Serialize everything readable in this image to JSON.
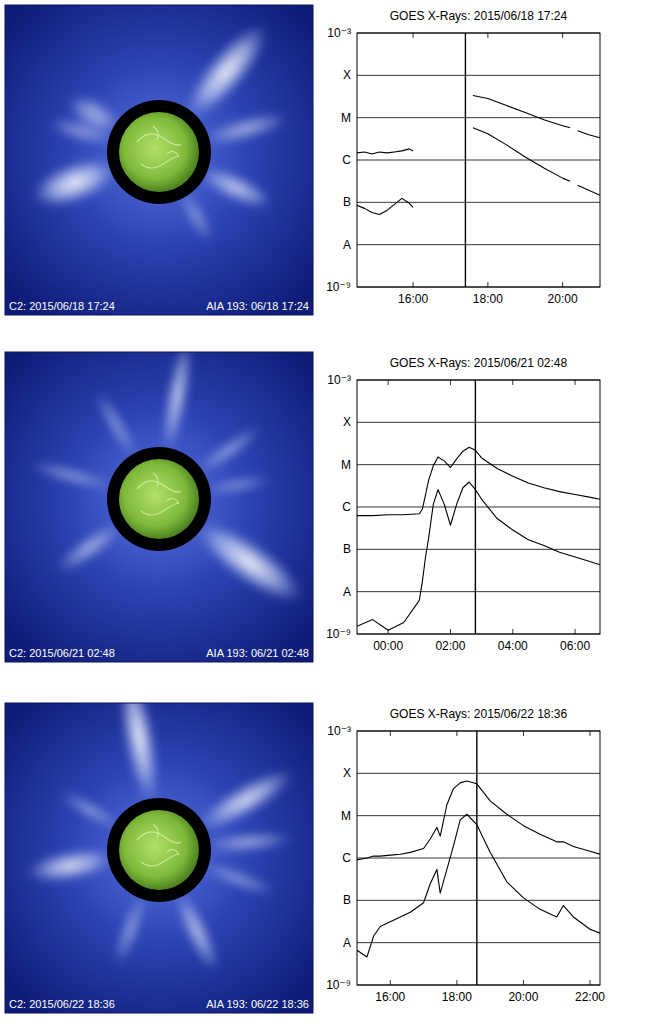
{
  "images": [
    {
      "c2_label": "C2: 2015/06/18 17:24",
      "aia_label": "AIA 193: 06/18 17:24"
    },
    {
      "c2_label": "C2: 2015/06/21 02:48",
      "aia_label": "AIA 193: 06/21 02:48"
    },
    {
      "c2_label": "C2: 2015/06/22 18:36",
      "aia_label": "AIA 193: 06/22 18:36"
    }
  ],
  "chart_data": [
    {
      "type": "line",
      "title": "GOES X-Rays: 2015/06/18 17:24",
      "log": "y",
      "grid": true,
      "xlim": [
        14.5,
        21.0
      ],
      "xticks": [
        {
          "value": 16,
          "label": "16:00"
        },
        {
          "value": 18,
          "label": "18:00"
        },
        {
          "value": 20,
          "label": "20:00"
        }
      ],
      "ylim": [
        1e-09,
        0.001
      ],
      "yticks": [
        {
          "value": 0.001,
          "label": "10⁻³"
        },
        {
          "value": 0.0001,
          "label": "X"
        },
        {
          "value": 1e-05,
          "label": "M"
        },
        {
          "value": 1e-06,
          "label": "C"
        },
        {
          "value": 1e-07,
          "label": "B"
        },
        {
          "value": 1e-08,
          "label": "A"
        },
        {
          "value": 1e-09,
          "label": "10⁻⁹"
        }
      ],
      "vline": 17.4,
      "x": [
        14.5,
        14.7,
        14.9,
        15.1,
        15.3,
        15.5,
        15.7,
        15.9,
        16.0,
        16.5,
        17.6,
        18.0,
        18.5,
        19.0,
        19.5,
        20.0,
        20.2,
        20.3,
        20.4,
        20.7,
        21.0
      ],
      "series": [
        {
          "color": "#000000",
          "values": [
            1.47e-06,
            1.55e-06,
            1.39e-06,
            1.55e-06,
            1.47e-06,
            1.55e-06,
            1.64e-06,
            1.83e-06,
            1.64e-06,
            null,
            3.34e-05,
            2.83e-05,
            1.93e-05,
            1.32e-05,
            8.97e-06,
            6.45e-06,
            5.78e-06,
            null,
            4.9e-06,
            3.94e-06,
            3.34e-06
          ]
        },
        {
          "color": "#000000",
          "values": [
            8.48e-08,
            7.2e-08,
            5.78e-08,
            5.18e-08,
            6.45e-08,
            8.97e-08,
            1.24e-07,
            9.47e-08,
            7.6e-08,
            null,
            5.78e-06,
            4.16e-06,
            2.28e-06,
            1.18e-06,
            6.45e-07,
            3.73e-07,
            3.16e-07,
            null,
            2.54e-07,
            1.93e-07,
            1.47e-07
          ]
        }
      ]
    },
    {
      "type": "line",
      "title": "GOES X-Rays: 2015/06/21 02:48",
      "log": "y",
      "grid": true,
      "xlim": [
        -1.0,
        6.8
      ],
      "xticks": [
        {
          "value": 0,
          "label": "00:00"
        },
        {
          "value": 2,
          "label": "02:00"
        },
        {
          "value": 4,
          "label": "04:00"
        },
        {
          "value": 6,
          "label": "06:00"
        }
      ],
      "ylim": [
        1e-09,
        0.001
      ],
      "yticks": [
        {
          "value": 0.001,
          "label": "10⁻³"
        },
        {
          "value": 0.0001,
          "label": "X"
        },
        {
          "value": 1e-05,
          "label": "M"
        },
        {
          "value": 1e-06,
          "label": "C"
        },
        {
          "value": 1e-07,
          "label": "B"
        },
        {
          "value": 1e-08,
          "label": "A"
        },
        {
          "value": 1e-09,
          "label": "10⁻⁹"
        }
      ],
      "vline": 2.8,
      "x": [
        -1.0,
        -0.5,
        0,
        0.5,
        1.0,
        1.1,
        1.2,
        1.3,
        1.45,
        1.6,
        1.8,
        2.0,
        2.2,
        2.4,
        2.6,
        2.8,
        3.0,
        3.5,
        4.0,
        4.5,
        5.0,
        5.5,
        6.0,
        6.5,
        6.8
      ],
      "series": [
        {
          "color": "#000000",
          "values": [
            6.24e-07,
            6.24e-07,
            6.58e-07,
            6.58e-07,
            6.93e-07,
            9e-07,
            1.97e-06,
            4.33e-06,
            9.49e-06,
            1.52e-05,
            1.23e-05,
            8.55e-06,
            1.37e-05,
            2.08e-05,
            2.57e-05,
            2.19e-05,
            1.44e-05,
            8.11e-06,
            5.34e-06,
            3.7e-06,
            2.85e-06,
            2.31e-06,
            1.97e-06,
            1.69e-06,
            1.52e-06
          ]
        },
        {
          "color": "#000000",
          "values": [
            1.52e-09,
            2.19e-09,
            1.23e-09,
            1.87e-09,
            6.24e-09,
            1.78e-08,
            6.58e-08,
            1.87e-07,
            1.17e-06,
            2.57e-06,
            1.17e-06,
            3.7e-07,
            1.17e-06,
            2.85e-06,
            3.9e-06,
            2.57e-06,
            1.52e-06,
            5.34e-07,
            2.85e-07,
            1.69e-07,
            1.23e-07,
            8.55e-08,
            6.58e-08,
            5.07e-08,
            4.33e-08
          ]
        }
      ]
    },
    {
      "type": "line",
      "title": "GOES X-Rays: 2015/06/22 18:36",
      "log": "y",
      "grid": true,
      "xlim": [
        15.0,
        22.3
      ],
      "xticks": [
        {
          "value": 16,
          "label": "16:00"
        },
        {
          "value": 18,
          "label": "18:00"
        },
        {
          "value": 20,
          "label": "20:00"
        },
        {
          "value": 22,
          "label": "22:00"
        }
      ],
      "ylim": [
        1e-09,
        0.001
      ],
      "yticks": [
        {
          "value": 0.001,
          "label": "10⁻³"
        },
        {
          "value": 0.0001,
          "label": "X"
        },
        {
          "value": 1e-05,
          "label": "M"
        },
        {
          "value": 1e-06,
          "label": "C"
        },
        {
          "value": 1e-07,
          "label": "B"
        },
        {
          "value": 1e-08,
          "label": "A"
        },
        {
          "value": 1e-09,
          "label": "10⁻⁹"
        }
      ],
      "vline": 18.6,
      "x": [
        15.0,
        15.3,
        15.5,
        15.7,
        16.0,
        16.3,
        16.6,
        17.0,
        17.2,
        17.4,
        17.5,
        17.7,
        17.9,
        18.1,
        18.3,
        18.6,
        19.0,
        19.5,
        20.0,
        20.5,
        21.0,
        21.2,
        21.5,
        22.0,
        22.3
      ],
      "series": [
        {
          "color": "#000000",
          "values": [
            9.02e-07,
            1e-06,
            1.11e-06,
            1.11e-06,
            1.17e-06,
            1.23e-06,
            1.36e-06,
            1.68e-06,
            2.81e-06,
            5.24e-06,
            3.29e-06,
            1.81e-05,
            4.37e-05,
            5.96e-05,
            6.61e-05,
            5.66e-05,
            2.23e-05,
            1.08e-05,
            5.81e-06,
            3.65e-06,
            2.41e-06,
            2.41e-06,
            1.86e-06,
            1.44e-06,
            1.23e-06
          ]
        },
        {
          "color": "#000000",
          "values": [
            6.61e-09,
            4.6e-09,
            1.44e-08,
            2.41e-08,
            3.12e-08,
            4.05e-08,
            5.24e-08,
            8.79e-08,
            2.47e-07,
            5.37e-07,
            1.48e-07,
            5.37e-07,
            1.96e-06,
            7.92e-06,
            1.08e-05,
            6.12e-06,
            1.36e-06,
            2.74e-07,
            1.14e-07,
            6.12e-08,
            4.05e-08,
            7.52e-08,
            4.05e-08,
            2.07e-08,
            1.68e-08
          ]
        }
      ]
    }
  ]
}
